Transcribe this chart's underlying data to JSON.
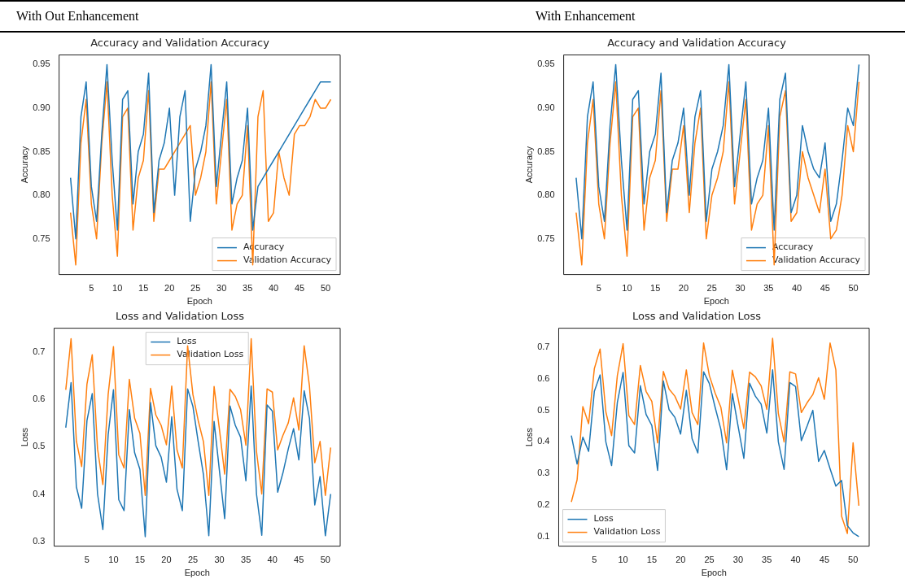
{
  "chart_data": [
    {
      "type": "line",
      "title": "Accuracy and Validation Accuracy",
      "xlabel": "Epoch",
      "ylabel": "Accuracy",
      "annotations": [
        "With Out Enhancement"
      ],
      "legend": "bottom right",
      "grid": false,
      "x": [
        1,
        2,
        3,
        4,
        5,
        6,
        7,
        8,
        9,
        10,
        11,
        12,
        13,
        14,
        15,
        16,
        17,
        18,
        19,
        20,
        21,
        22,
        23,
        24,
        25,
        26,
        27,
        28,
        29,
        30,
        31,
        32,
        33,
        34,
        35,
        36,
        37,
        38,
        39,
        40,
        41,
        42,
        43,
        44,
        45,
        46,
        47,
        48,
        49,
        50,
        51
      ],
      "xlim": [
        -1.2,
        52.8
      ],
      "xticks": [
        5,
        10,
        15,
        20,
        25,
        30,
        35,
        40,
        45,
        50
      ],
      "ylim": [
        0.709,
        0.961
      ],
      "yticks": [
        {
          "value": 0.75,
          "label": "0.75"
        },
        {
          "value": 0.8,
          "label": "0.80"
        },
        {
          "value": 0.85,
          "label": "0.85"
        },
        {
          "value": 0.9,
          "label": "0.90"
        },
        {
          "value": 0.95,
          "label": "0.95"
        }
      ],
      "series": [
        {
          "name": "Accuracy",
          "color": "#1f77b4",
          "values": [
            0.82,
            0.75,
            0.89,
            0.93,
            0.81,
            0.77,
            0.87,
            0.95,
            0.84,
            0.76,
            0.91,
            0.92,
            0.79,
            0.85,
            0.87,
            0.94,
            0.78,
            0.84,
            0.86,
            0.9,
            0.8,
            0.89,
            0.92,
            0.77,
            0.83,
            0.85,
            0.88,
            0.95,
            0.81,
            0.87,
            0.93,
            0.79,
            0.82,
            0.84,
            0.9,
            0.76,
            0.81,
            0.82,
            0.83,
            0.84,
            0.85,
            0.86,
            0.87,
            0.88,
            0.89,
            0.9,
            0.91,
            0.92,
            0.93,
            0.93,
            0.93
          ]
        },
        {
          "name": "Validation Accuracy",
          "color": "#ff7f0e",
          "values": [
            0.78,
            0.72,
            0.86,
            0.91,
            0.79,
            0.75,
            0.86,
            0.93,
            0.8,
            0.73,
            0.89,
            0.9,
            0.76,
            0.82,
            0.84,
            0.92,
            0.77,
            0.83,
            0.83,
            0.84,
            0.85,
            0.86,
            0.87,
            0.88,
            0.8,
            0.82,
            0.85,
            0.93,
            0.79,
            0.85,
            0.91,
            0.76,
            0.79,
            0.8,
            0.88,
            0.72,
            0.89,
            0.92,
            0.77,
            0.78,
            0.85,
            0.82,
            0.8,
            0.87,
            0.88,
            0.88,
            0.89,
            0.91,
            0.9,
            0.9,
            0.91
          ]
        }
      ]
    },
    {
      "type": "line",
      "title": "Accuracy and Validation Accuracy",
      "xlabel": "Epoch",
      "ylabel": "Accuracy",
      "annotations": [
        "With Enhancement"
      ],
      "legend": "bottom right",
      "grid": false,
      "x": [
        1,
        2,
        3,
        4,
        5,
        6,
        7,
        8,
        9,
        10,
        11,
        12,
        13,
        14,
        15,
        16,
        17,
        18,
        19,
        20,
        21,
        22,
        23,
        24,
        25,
        26,
        27,
        28,
        29,
        30,
        31,
        32,
        33,
        34,
        35,
        36,
        37,
        38,
        39,
        40,
        41,
        42,
        43,
        44,
        45,
        46,
        47,
        48,
        49,
        50,
        51
      ],
      "xlim": [
        -1.2,
        52.8
      ],
      "xticks": [
        5,
        10,
        15,
        20,
        25,
        30,
        35,
        40,
        45,
        50
      ],
      "ylim": [
        0.709,
        0.961
      ],
      "yticks": [
        {
          "value": 0.75,
          "label": "0.75"
        },
        {
          "value": 0.8,
          "label": "0.80"
        },
        {
          "value": 0.85,
          "label": "0.85"
        },
        {
          "value": 0.9,
          "label": "0.90"
        },
        {
          "value": 0.95,
          "label": "0.95"
        }
      ],
      "series": [
        {
          "name": "Accuracy",
          "color": "#1f77b4",
          "values": [
            0.82,
            0.75,
            0.89,
            0.93,
            0.81,
            0.77,
            0.88,
            0.95,
            0.84,
            0.76,
            0.91,
            0.92,
            0.79,
            0.85,
            0.87,
            0.94,
            0.78,
            0.84,
            0.86,
            0.9,
            0.8,
            0.89,
            0.92,
            0.77,
            0.83,
            0.85,
            0.88,
            0.95,
            0.81,
            0.87,
            0.93,
            0.79,
            0.82,
            0.84,
            0.9,
            0.76,
            0.91,
            0.94,
            0.78,
            0.8,
            0.88,
            0.85,
            0.83,
            0.82,
            0.86,
            0.77,
            0.79,
            0.84,
            0.9,
            0.88,
            0.95
          ]
        },
        {
          "name": "Validation Accuracy",
          "color": "#ff7f0e",
          "values": [
            0.78,
            0.72,
            0.86,
            0.91,
            0.79,
            0.75,
            0.86,
            0.93,
            0.8,
            0.73,
            0.89,
            0.9,
            0.76,
            0.82,
            0.84,
            0.92,
            0.77,
            0.83,
            0.83,
            0.88,
            0.78,
            0.86,
            0.9,
            0.75,
            0.8,
            0.82,
            0.85,
            0.93,
            0.79,
            0.85,
            0.91,
            0.76,
            0.79,
            0.8,
            0.88,
            0.72,
            0.89,
            0.92,
            0.77,
            0.78,
            0.85,
            0.82,
            0.8,
            0.78,
            0.83,
            0.75,
            0.76,
            0.8,
            0.88,
            0.85,
            0.93
          ]
        }
      ]
    },
    {
      "type": "line",
      "title": "Loss and Validation Loss",
      "xlabel": "Epoch",
      "ylabel": "Loss",
      "legend": "top",
      "grid": false,
      "x": [
        1,
        2,
        3,
        4,
        5,
        6,
        7,
        8,
        9,
        10,
        11,
        12,
        13,
        14,
        15,
        16,
        17,
        18,
        19,
        20,
        21,
        22,
        23,
        24,
        25,
        26,
        27,
        28,
        29,
        30,
        31,
        32,
        33,
        34,
        35,
        36,
        37,
        38,
        39,
        40,
        41,
        42,
        43,
        44,
        45,
        46,
        47,
        48,
        49,
        50,
        51
      ],
      "xlim": [
        -1.2,
        52.8
      ],
      "xticks": [
        5,
        10,
        15,
        20,
        25,
        30,
        35,
        40,
        45,
        50
      ],
      "ylim": [
        0.29,
        0.75
      ],
      "yticks": [
        0.3,
        0.4,
        0.5,
        0.6,
        0.7
      ],
      "series": [
        {
          "name": "Loss",
          "color": "#1f77b4",
          "values": [
            0.54,
            0.635,
            0.415,
            0.37,
            0.555,
            0.612,
            0.4,
            0.325,
            0.525,
            0.62,
            0.388,
            0.365,
            0.578,
            0.487,
            0.452,
            0.31,
            0.593,
            0.502,
            0.478,
            0.425,
            0.563,
            0.41,
            0.365,
            0.622,
            0.585,
            0.51,
            0.44,
            0.312,
            0.553,
            0.45,
            0.348,
            0.586,
            0.545,
            0.52,
            0.428,
            0.628,
            0.4,
            0.313,
            0.588,
            0.575,
            0.404,
            0.445,
            0.495,
            0.538,
            0.472,
            0.618,
            0.56,
            0.377,
            0.437,
            0.312,
            0.4
          ]
        },
        {
          "name": "Validation Loss",
          "color": "#ff7f0e",
          "values": [
            0.62,
            0.728,
            0.512,
            0.458,
            0.632,
            0.694,
            0.495,
            0.42,
            0.61,
            0.711,
            0.483,
            0.455,
            0.642,
            0.56,
            0.528,
            0.397,
            0.623,
            0.567,
            0.545,
            0.504,
            0.628,
            0.493,
            0.455,
            0.713,
            0.61,
            0.555,
            0.51,
            0.397,
            0.627,
            0.537,
            0.442,
            0.621,
            0.606,
            0.578,
            0.503,
            0.728,
            0.49,
            0.4,
            0.622,
            0.615,
            0.493,
            0.524,
            0.55,
            0.603,
            0.535,
            0.713,
            0.628,
            0.466,
            0.511,
            0.397,
            0.498
          ]
        }
      ]
    },
    {
      "type": "line",
      "title": "Loss and Validation Loss",
      "xlabel": "Epoch",
      "ylabel": "Loss",
      "legend": "bottom left",
      "grid": false,
      "x": [
        1,
        2,
        3,
        4,
        5,
        6,
        7,
        8,
        9,
        10,
        11,
        12,
        13,
        14,
        15,
        16,
        17,
        18,
        19,
        20,
        21,
        22,
        23,
        24,
        25,
        26,
        27,
        28,
        29,
        30,
        31,
        32,
        33,
        34,
        35,
        36,
        37,
        38,
        39,
        40,
        41,
        42,
        43,
        44,
        45,
        46,
        47,
        48,
        49,
        50,
        51
      ],
      "xlim": [
        -1.2,
        52.8
      ],
      "xticks": [
        5,
        10,
        15,
        20,
        25,
        30,
        35,
        40,
        45,
        50
      ],
      "ylim": [
        0.07,
        0.76
      ],
      "yticks": [
        0.1,
        0.2,
        0.3,
        0.4,
        0.5,
        0.6,
        0.7
      ],
      "series": [
        {
          "name": "Loss",
          "color": "#1f77b4",
          "values": [
            0.42,
            0.33,
            0.415,
            0.37,
            0.56,
            0.612,
            0.4,
            0.325,
            0.525,
            0.62,
            0.388,
            0.365,
            0.578,
            0.487,
            0.452,
            0.31,
            0.593,
            0.502,
            0.478,
            0.425,
            0.563,
            0.41,
            0.365,
            0.622,
            0.585,
            0.51,
            0.44,
            0.312,
            0.553,
            0.45,
            0.348,
            0.586,
            0.545,
            0.52,
            0.428,
            0.628,
            0.4,
            0.313,
            0.588,
            0.575,
            0.404,
            0.45,
            0.5,
            0.338,
            0.373,
            0.315,
            0.26,
            0.278,
            0.135,
            0.112,
            0.1
          ]
        },
        {
          "name": "Validation Loss",
          "color": "#ff7f0e",
          "values": [
            0.21,
            0.28,
            0.512,
            0.458,
            0.632,
            0.694,
            0.495,
            0.42,
            0.61,
            0.711,
            0.483,
            0.455,
            0.642,
            0.56,
            0.528,
            0.397,
            0.623,
            0.567,
            0.545,
            0.504,
            0.628,
            0.493,
            0.455,
            0.713,
            0.61,
            0.555,
            0.51,
            0.397,
            0.627,
            0.537,
            0.442,
            0.621,
            0.606,
            0.578,
            0.503,
            0.728,
            0.49,
            0.4,
            0.622,
            0.615,
            0.493,
            0.524,
            0.55,
            0.603,
            0.535,
            0.713,
            0.628,
            0.165,
            0.11,
            0.397,
            0.198
          ]
        }
      ]
    }
  ]
}
